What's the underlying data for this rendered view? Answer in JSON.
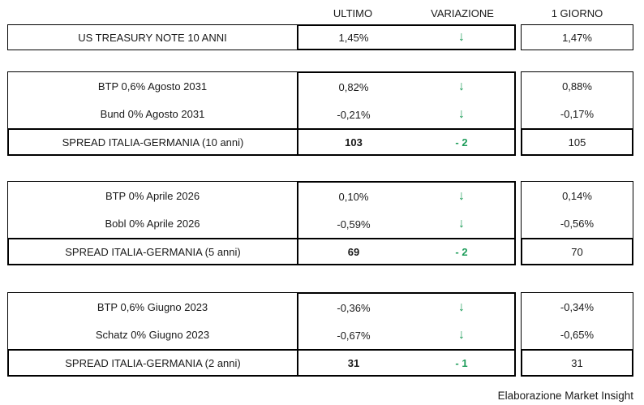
{
  "header": {
    "ultimo": "ULTIMO",
    "variazione": "VARIAZIONE",
    "giorno": "1 GIORNO"
  },
  "icons": {
    "down_arrow": "↓"
  },
  "colors": {
    "accent_green": "#1f9d5b",
    "border": "#000000",
    "text": "#1a1a1a",
    "background": "#ffffff"
  },
  "us_treasury": {
    "label": "US TREASURY NOTE 10 ANNI",
    "ultimo": "1,45%",
    "giorno": "1,47%"
  },
  "blocks": [
    {
      "bonds": [
        {
          "label": "BTP 0,6% Agosto 2031",
          "ultimo": "0,82%",
          "giorno": "0,88%"
        },
        {
          "label": "Bund 0% Agosto 2031",
          "ultimo": "-0,21%",
          "giorno": "-0,17%"
        }
      ],
      "spread": {
        "label": "SPREAD ITALIA-GERMANIA (10 anni)",
        "ultimo": "103",
        "variazione": "- 2",
        "giorno": "105"
      }
    },
    {
      "bonds": [
        {
          "label": "BTP 0% Aprile 2026",
          "ultimo": "0,10%",
          "giorno": "0,14%"
        },
        {
          "label": "Bobl 0% Aprile 2026",
          "ultimo": "-0,59%",
          "giorno": "-0,56%"
        }
      ],
      "spread": {
        "label": "SPREAD ITALIA-GERMANIA (5 anni)",
        "ultimo": "69",
        "variazione": "- 2",
        "giorno": "70"
      }
    },
    {
      "bonds": [
        {
          "label": "BTP 0,6% Giugno 2023",
          "ultimo": "-0,36%",
          "giorno": "-0,34%"
        },
        {
          "label": "Schatz 0% Giugno 2023",
          "ultimo": "-0,67%",
          "giorno": "-0,65%"
        }
      ],
      "spread": {
        "label": "SPREAD ITALIA-GERMANIA (2 anni)",
        "ultimo": "31",
        "variazione": "- 1",
        "giorno": "31"
      }
    }
  ],
  "footer": {
    "credit": "Elaborazione Market Insight"
  },
  "chart_data": {
    "type": "table",
    "columns": [
      "",
      "ULTIMO",
      "VARIAZIONE",
      "1 GIORNO"
    ],
    "rows": [
      [
        "US TREASURY NOTE 10 ANNI",
        "1,45%",
        "↓",
        "1,47%"
      ],
      [
        "BTP 0,6% Agosto 2031",
        "0,82%",
        "↓",
        "0,88%"
      ],
      [
        "Bund 0% Agosto 2031",
        "-0,21%",
        "↓",
        "-0,17%"
      ],
      [
        "SPREAD ITALIA-GERMANIA (10 anni)",
        "103",
        "-2",
        "105"
      ],
      [
        "BTP 0% Aprile 2026",
        "0,10%",
        "↓",
        "0,14%"
      ],
      [
        "Bobl 0% Aprile 2026",
        "-0,59%",
        "↓",
        "-0,56%"
      ],
      [
        "SPREAD ITALIA-GERMANIA (5 anni)",
        "69",
        "-2",
        "70"
      ],
      [
        "BTP 0,6% Giugno 2023",
        "-0,36%",
        "↓",
        "-0,34%"
      ],
      [
        "Schatz 0% Giugno 2023",
        "-0,67%",
        "↓",
        "-0,65%"
      ],
      [
        "SPREAD ITALIA-GERMANIA (2 anni)",
        "31",
        "-1",
        "31"
      ]
    ],
    "title": "",
    "notes": "All variation arrows point down (green); spread variation values shown in green bold"
  }
}
